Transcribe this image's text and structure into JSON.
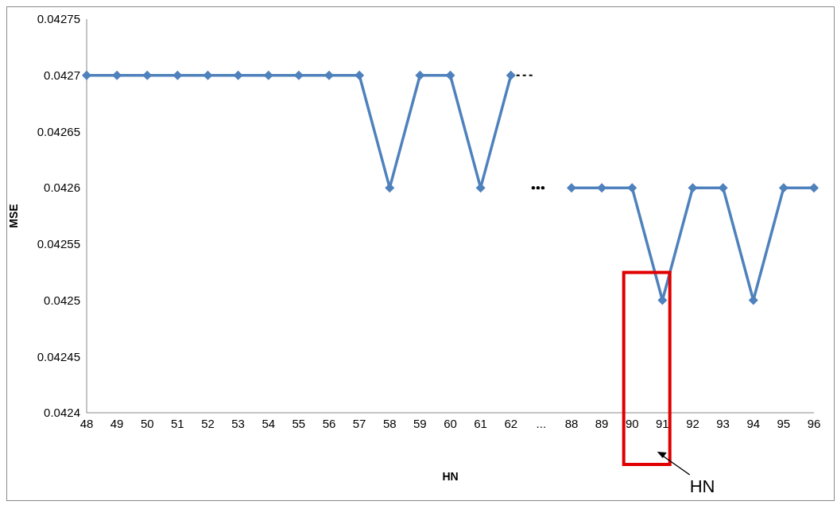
{
  "chart_data": {
    "type": "line",
    "xlabel": "HN",
    "ylabel": "MSE",
    "categories": [
      "48",
      "49",
      "50",
      "51",
      "52",
      "53",
      "54",
      "55",
      "56",
      "57",
      "58",
      "59",
      "60",
      "61",
      "62",
      "...",
      "88",
      "89",
      "90",
      "91",
      "92",
      "93",
      "94",
      "95",
      "96"
    ],
    "series": [
      {
        "color": "#4f81bd",
        "values": [
          0.0427,
          0.0427,
          0.0427,
          0.0427,
          0.0427,
          0.0427,
          0.0427,
          0.0427,
          0.0427,
          0.0427,
          0.0426,
          0.0427,
          0.0427,
          0.0426,
          0.0427,
          null,
          0.0426,
          0.0426,
          0.0426,
          0.0425,
          0.0426,
          0.0426,
          0.0425,
          0.0426,
          0.0426
        ]
      }
    ],
    "ylim": [
      0.0424,
      0.04275
    ],
    "yticks": [
      0.0424,
      0.04245,
      0.0425,
      0.04255,
      0.0426,
      0.04265,
      0.0427,
      0.04275
    ],
    "grid": false,
    "legend": false,
    "marker": "diamond",
    "line_style": "solid",
    "annotations": [
      "HN"
    ]
  }
}
